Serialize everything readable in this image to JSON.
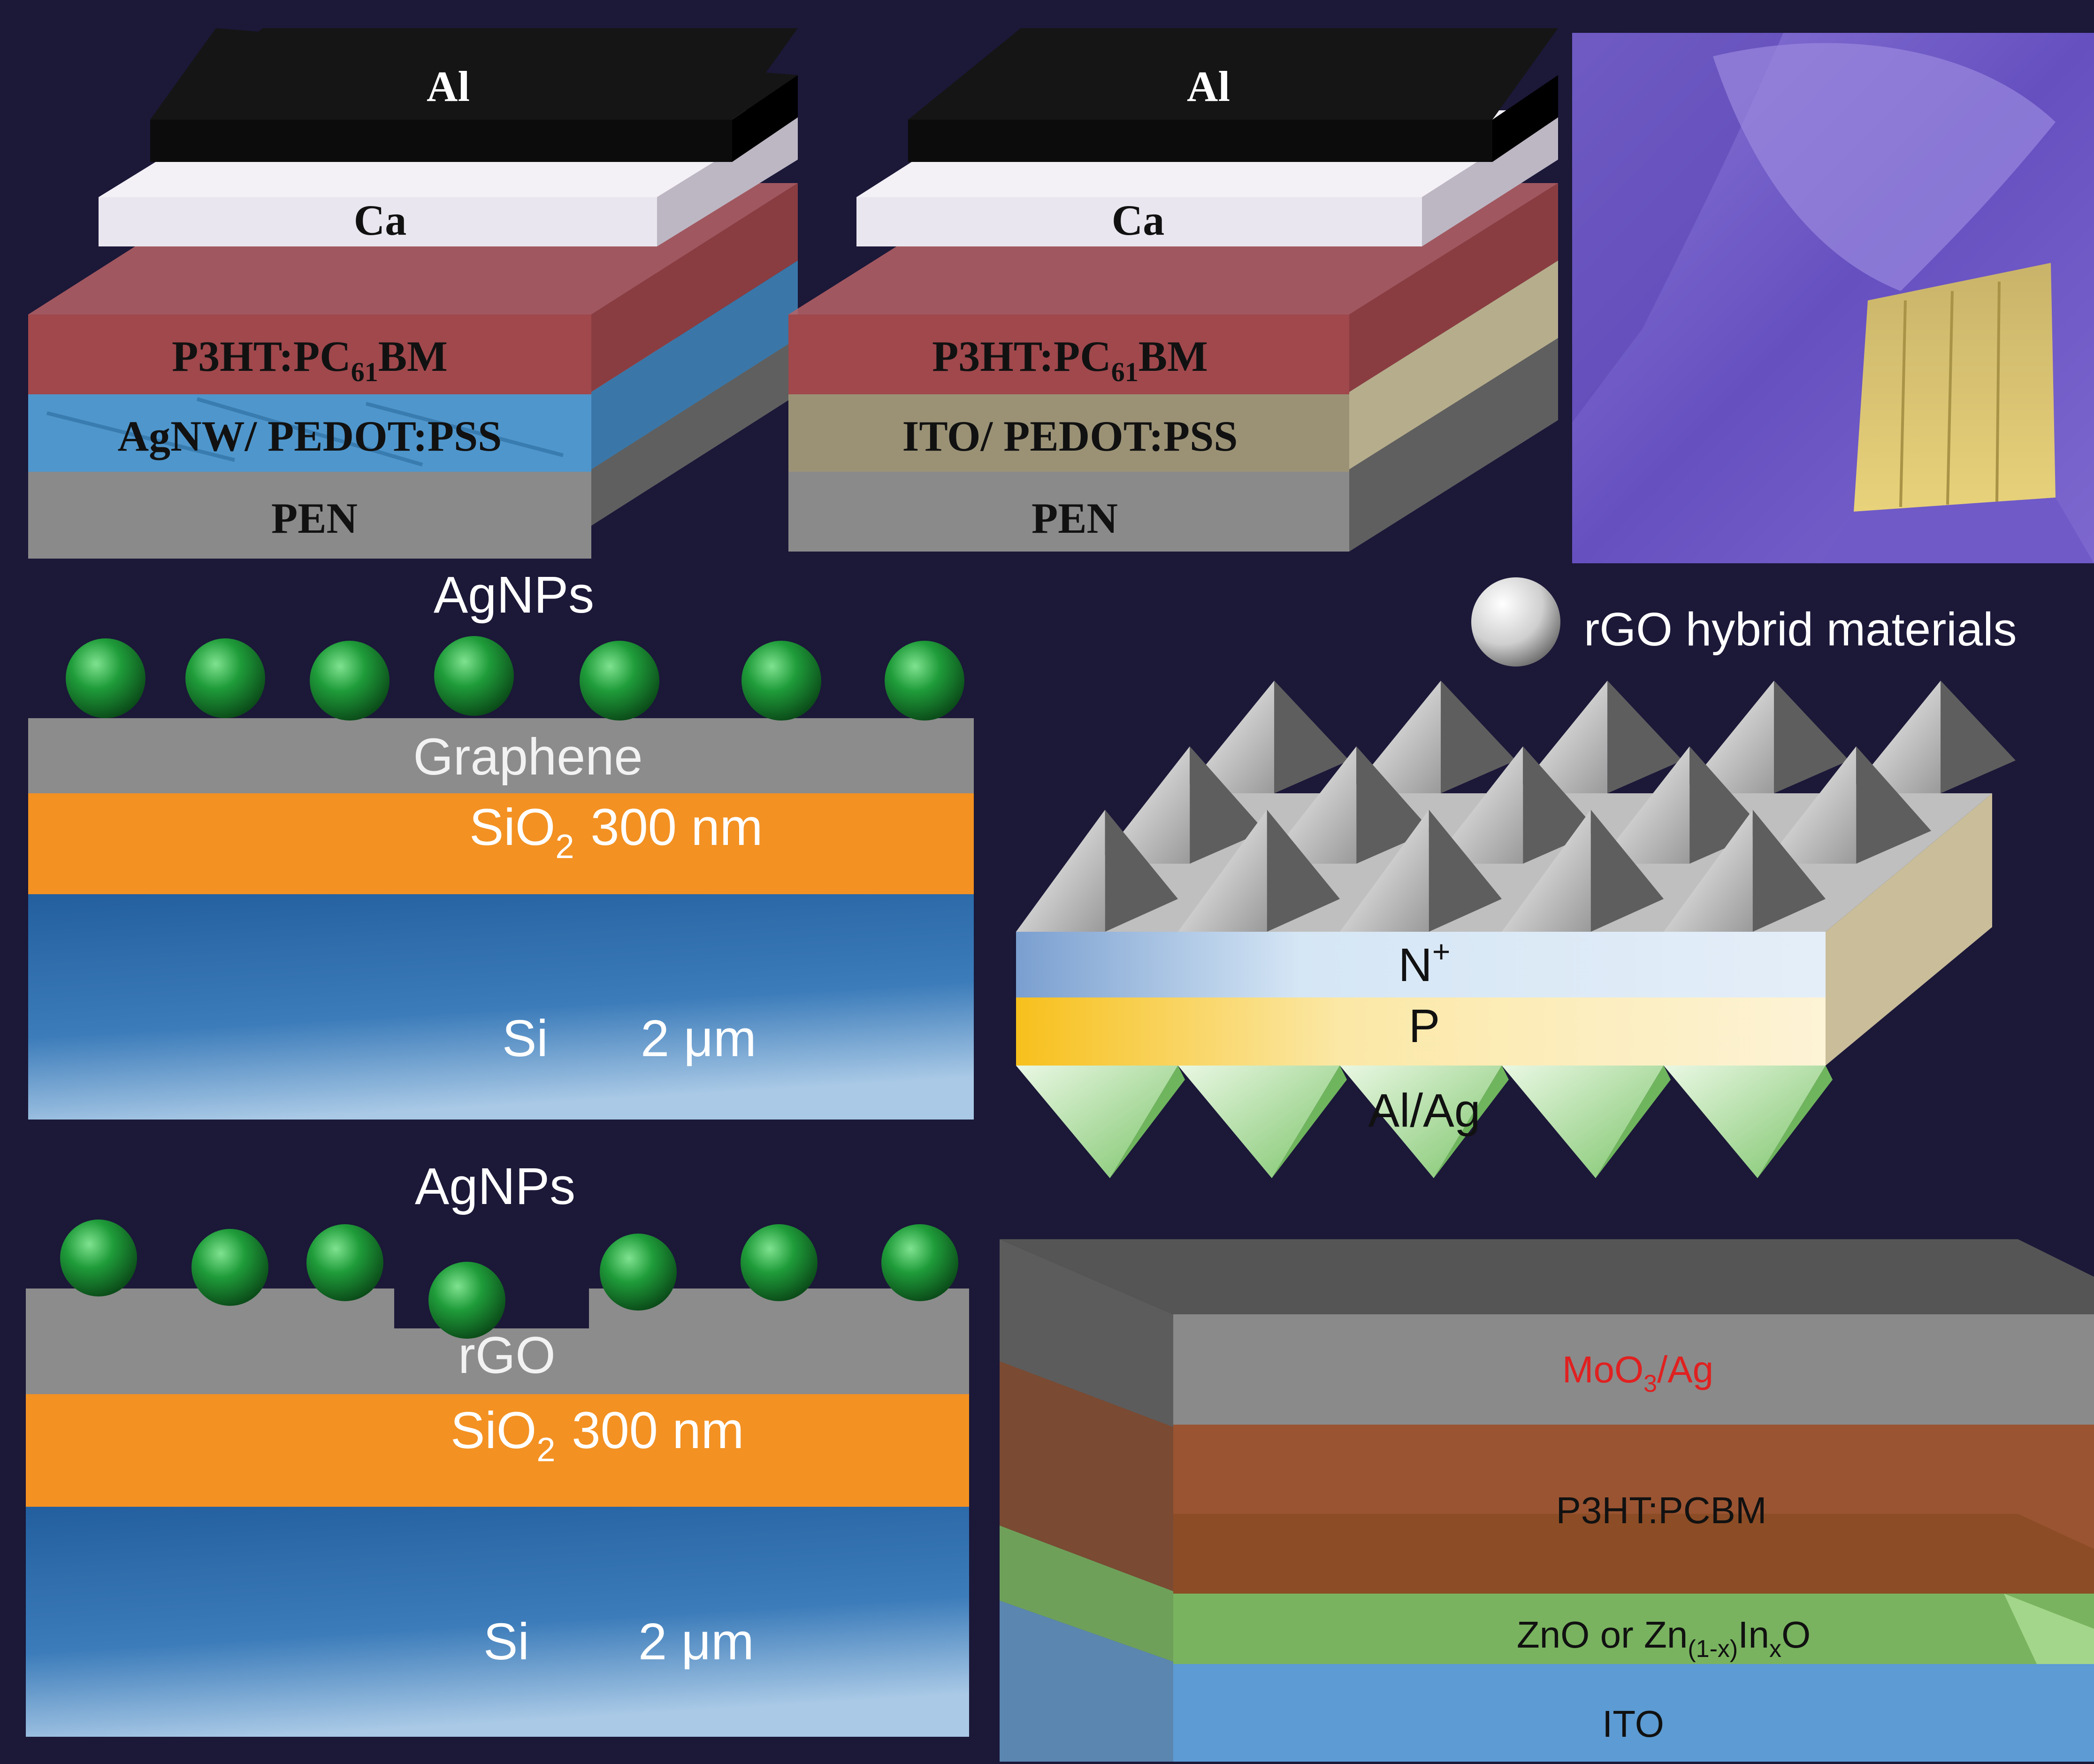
{
  "panel_a": {
    "al": "Al",
    "ca": "Ca",
    "active_main": "P3HT:PC",
    "active_sub": "61",
    "active_end": "BM",
    "electrode": "AgNW/ PEDOT:PSS",
    "substrate": "PEN"
  },
  "panel_b": {
    "al": "Al",
    "ca": "Ca",
    "active_main": "P3HT:PC",
    "active_sub": "61",
    "active_end": "BM",
    "electrode": "ITO/ PEDOT:PSS",
    "substrate": "PEN"
  },
  "panel_d": {
    "particles": "AgNPs",
    "film": "Graphene",
    "oxide_main": "SiO",
    "oxide_sub": "2",
    "oxide_thickness": "300 nm",
    "substrate": "Si",
    "substrate_thickness": "2 μm"
  },
  "panel_e": {
    "hybrid_label": "rGO hybrid materials",
    "n_layer": "N",
    "n_sup": "+",
    "p_layer": "P",
    "contact": "Al/Ag"
  },
  "panel_f": {
    "particles": "AgNPs",
    "film": "rGO",
    "oxide_main": "SiO",
    "oxide_sub": "2",
    "oxide_thickness": "300 nm",
    "substrate": "Si",
    "substrate_thickness": "2 μm"
  },
  "panel_g": {
    "top_main": "MoO",
    "top_sub": "3",
    "top_end": "/Ag",
    "active": "P3HT:PCBM",
    "etl_a": "ZnO or Zn",
    "etl_sub1": "(1-x)",
    "etl_b": "In",
    "etl_sub2": "x",
    "etl_c": "O",
    "bottom": "ITO"
  },
  "colors": {
    "background": "#1b1838",
    "al": "#151515",
    "ca": "#eae6ef",
    "p3ht": "#a0484c",
    "agnw": "#4f96cc",
    "ito_pedot": "#9b9276",
    "pen": "#8a8a8a",
    "graphene": "#8c8c8c",
    "sio2": "#f39122",
    "si": "#2f6eb0",
    "agnp": "#1f9c3a",
    "n_layer": "#d5e6f5",
    "p_layer": "#fbe8a6",
    "al_ag": "#8ccf7c",
    "moo3": "#8a8a8a",
    "p3ht_pcbm": "#9a5432",
    "zno": "#79b35f",
    "ito": "#5c9bd3",
    "red_label": "#e02020"
  }
}
